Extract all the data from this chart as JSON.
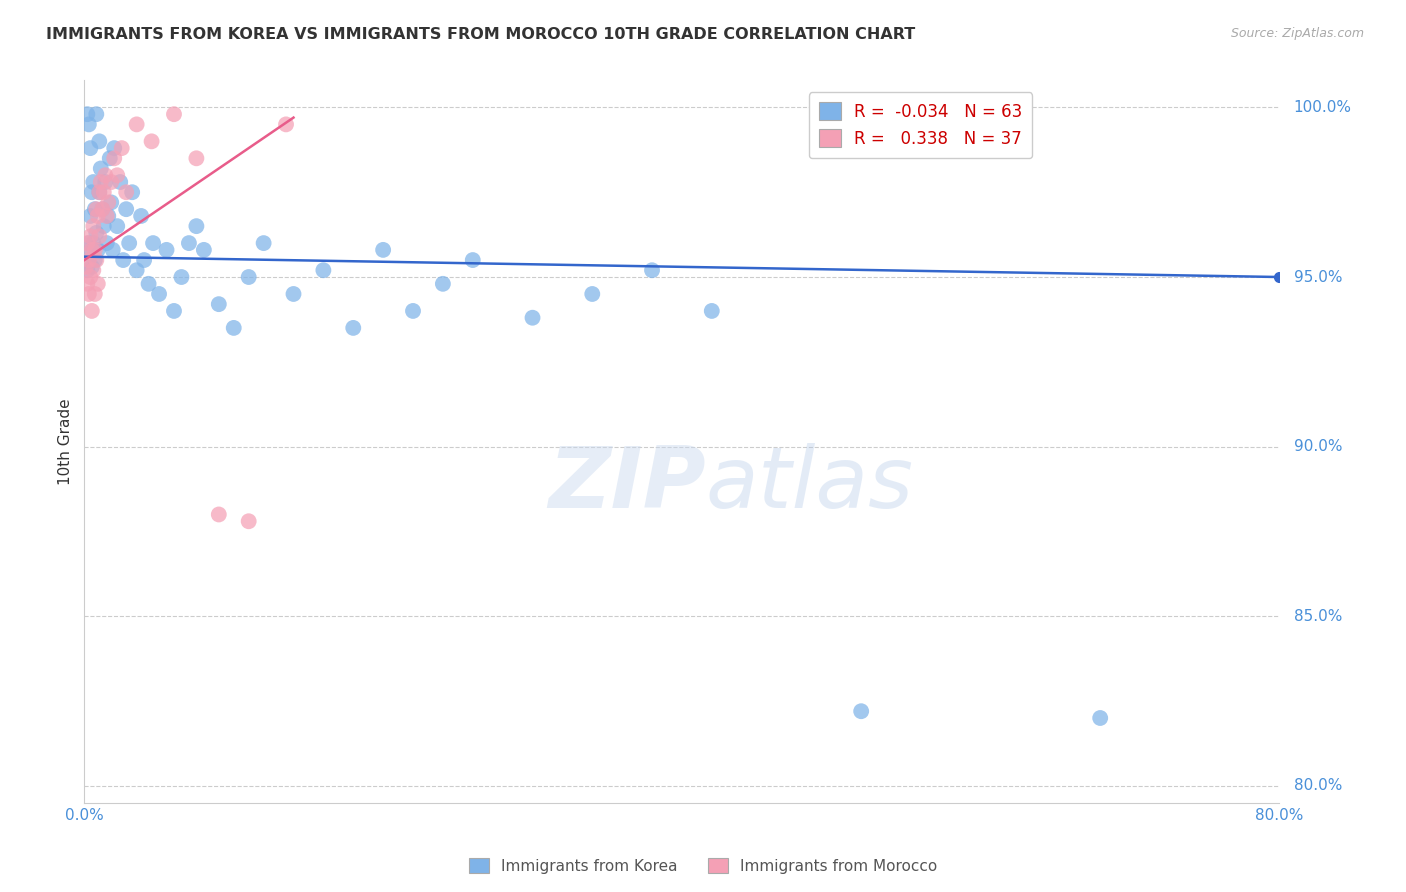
{
  "title": "IMMIGRANTS FROM KOREA VS IMMIGRANTS FROM MOROCCO 10TH GRADE CORRELATION CHART",
  "source": "Source: ZipAtlas.com",
  "ylabel": "10th Grade",
  "xlim": [
    0.0,
    0.8
  ],
  "ylim": [
    0.795,
    1.008
  ],
  "yticks": [
    0.8,
    0.85,
    0.9,
    0.95,
    1.0
  ],
  "ytick_labels": [
    "80.0%",
    "85.0%",
    "90.0%",
    "95.0%",
    "100.0%"
  ],
  "xticks": [
    0.0,
    0.1,
    0.2,
    0.3,
    0.4,
    0.5,
    0.6,
    0.7,
    0.8
  ],
  "xtick_labels": [
    "0.0%",
    "",
    "",
    "",
    "",
    "",
    "",
    "",
    "80.0%"
  ],
  "korea_R": -0.034,
  "korea_N": 63,
  "morocco_R": 0.338,
  "morocco_N": 37,
  "korea_color": "#7fb3e8",
  "morocco_color": "#f4a0b5",
  "korea_line_color": "#3366cc",
  "morocco_line_color": "#e85c8a",
  "background_color": "#ffffff",
  "watermark": "ZIPatlas",
  "korea_line_x0": 0.0,
  "korea_line_y0": 0.956,
  "korea_line_x1": 0.8,
  "korea_line_y1": 0.95,
  "morocco_line_x0": 0.0,
  "morocco_line_y0": 0.955,
  "morocco_line_x1": 0.14,
  "morocco_line_y1": 0.997,
  "korea_x": [
    0.001,
    0.002,
    0.002,
    0.003,
    0.003,
    0.004,
    0.004,
    0.005,
    0.005,
    0.006,
    0.006,
    0.007,
    0.007,
    0.008,
    0.008,
    0.009,
    0.01,
    0.01,
    0.011,
    0.012,
    0.013,
    0.014,
    0.015,
    0.016,
    0.017,
    0.018,
    0.019,
    0.02,
    0.022,
    0.024,
    0.026,
    0.028,
    0.03,
    0.032,
    0.035,
    0.038,
    0.04,
    0.043,
    0.046,
    0.05,
    0.055,
    0.06,
    0.065,
    0.07,
    0.075,
    0.08,
    0.09,
    0.1,
    0.11,
    0.12,
    0.14,
    0.16,
    0.18,
    0.2,
    0.22,
    0.24,
    0.26,
    0.3,
    0.34,
    0.38,
    0.42,
    0.52,
    0.68
  ],
  "korea_y": [
    0.957,
    0.952,
    0.998,
    0.96,
    0.995,
    0.968,
    0.988,
    0.953,
    0.975,
    0.96,
    0.978,
    0.955,
    0.97,
    0.998,
    0.963,
    0.958,
    0.99,
    0.975,
    0.982,
    0.97,
    0.965,
    0.978,
    0.96,
    0.968,
    0.985,
    0.972,
    0.958,
    0.988,
    0.965,
    0.978,
    0.955,
    0.97,
    0.96,
    0.975,
    0.952,
    0.968,
    0.955,
    0.948,
    0.96,
    0.945,
    0.958,
    0.94,
    0.95,
    0.96,
    0.965,
    0.958,
    0.942,
    0.935,
    0.95,
    0.96,
    0.945,
    0.952,
    0.935,
    0.958,
    0.94,
    0.948,
    0.955,
    0.938,
    0.945,
    0.952,
    0.94,
    0.822,
    0.82
  ],
  "morocco_x": [
    0.001,
    0.002,
    0.002,
    0.003,
    0.003,
    0.004,
    0.004,
    0.005,
    0.005,
    0.006,
    0.006,
    0.007,
    0.007,
    0.008,
    0.008,
    0.009,
    0.009,
    0.01,
    0.01,
    0.011,
    0.012,
    0.013,
    0.014,
    0.015,
    0.016,
    0.018,
    0.02,
    0.022,
    0.025,
    0.028,
    0.035,
    0.045,
    0.06,
    0.075,
    0.09,
    0.11,
    0.135
  ],
  "morocco_y": [
    0.953,
    0.96,
    0.948,
    0.955,
    0.945,
    0.962,
    0.95,
    0.958,
    0.94,
    0.965,
    0.952,
    0.958,
    0.945,
    0.97,
    0.955,
    0.968,
    0.948,
    0.975,
    0.962,
    0.978,
    0.97,
    0.975,
    0.98,
    0.968,
    0.972,
    0.978,
    0.985,
    0.98,
    0.988,
    0.975,
    0.995,
    0.99,
    0.998,
    0.985,
    0.88,
    0.878,
    0.995
  ]
}
